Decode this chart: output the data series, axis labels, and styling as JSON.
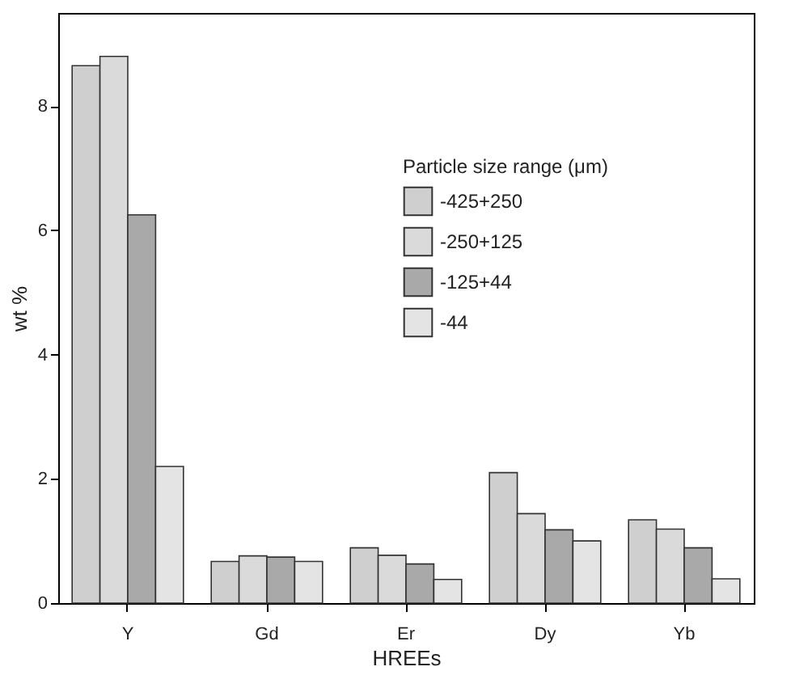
{
  "chart_data": {
    "type": "bar",
    "xlabel": "HREEs",
    "ylabel": "wt %",
    "legend_title": "Particle size range (μm)",
    "categories": [
      "Y",
      "Gd",
      "Er",
      "Dy",
      "Yb"
    ],
    "series": [
      {
        "name": "-425+250",
        "color": "#cfcfcf",
        "values": [
          8.65,
          0.67,
          0.89,
          2.1,
          1.34
        ]
      },
      {
        "name": "-250+125",
        "color": "#dadada",
        "values": [
          8.8,
          0.76,
          0.77,
          1.44,
          1.19
        ]
      },
      {
        "name": "-125+44",
        "color": "#a9a9a9",
        "values": [
          6.25,
          0.74,
          0.63,
          1.18,
          0.89
        ]
      },
      {
        "name": "-44",
        "color": "#e4e4e4",
        "values": [
          2.2,
          0.67,
          0.38,
          1.0,
          0.39
        ]
      }
    ],
    "ylim": [
      0,
      9.5
    ],
    "yticks": [
      0,
      2,
      4,
      6,
      8
    ],
    "grid": false,
    "legend": "top right"
  }
}
